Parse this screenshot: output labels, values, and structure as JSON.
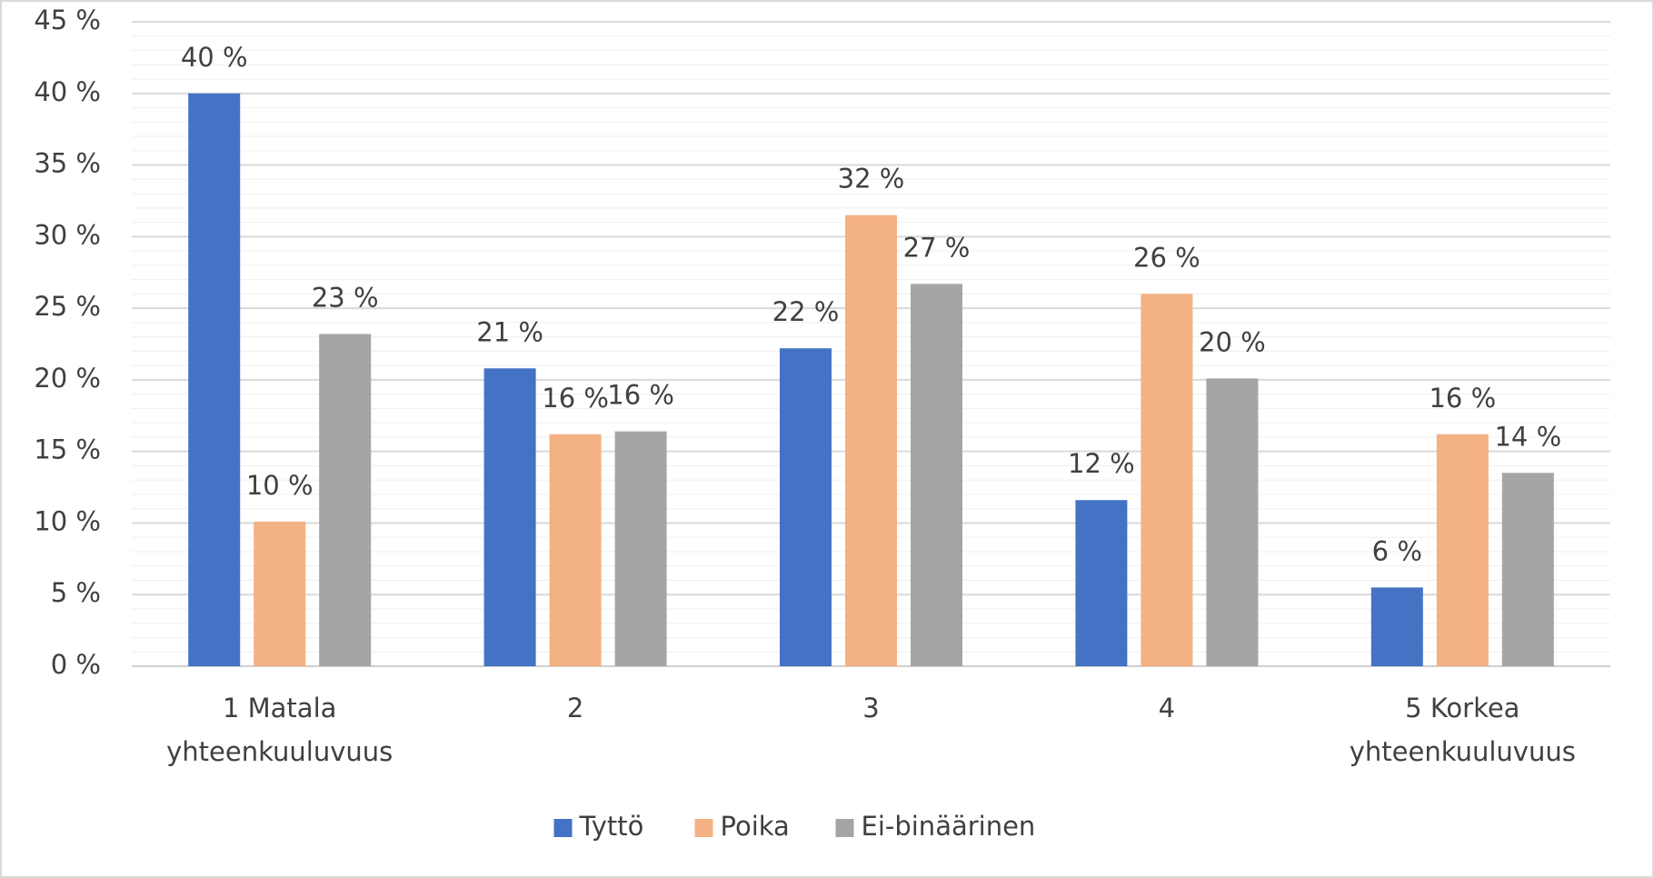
{
  "chart_data": {
    "type": "bar",
    "categories": [
      "1 Matala\nyhteenkuuluvuus",
      "2",
      "3",
      "4",
      "5 Korkea\nyhteenkuuluvuus"
    ],
    "series": [
      {
        "name": "Tyttö",
        "color": "#4472c4",
        "values": [
          40,
          20.8,
          22.2,
          11.6,
          5.5
        ],
        "value_labels": [
          "40 %",
          "21 %",
          "22 %",
          "12 %",
          "6 %"
        ]
      },
      {
        "name": "Poika",
        "color": "#f4b183",
        "values": [
          10.1,
          16.2,
          31.5,
          26,
          16.2
        ],
        "value_labels": [
          "10 %",
          "16 %",
          "32 %",
          "26 %",
          "16 %"
        ]
      },
      {
        "name": "Ei-binäärinen",
        "color": "#a5a5a5",
        "values": [
          23.2,
          16.4,
          26.7,
          20.1,
          13.5
        ],
        "value_labels": [
          "23 %",
          "16 %",
          "27 %",
          "20 %",
          "14 %"
        ]
      }
    ],
    "ylim": [
      0,
      45
    ],
    "yticks": [
      {
        "value": 0,
        "label": "0 %"
      },
      {
        "value": 5,
        "label": "5 %"
      },
      {
        "value": 10,
        "label": "10 %"
      },
      {
        "value": 15,
        "label": "15 %"
      },
      {
        "value": 20,
        "label": "20 %"
      },
      {
        "value": 25,
        "label": "25 %"
      },
      {
        "value": 30,
        "label": "30 %"
      },
      {
        "value": 35,
        "label": "35 %"
      },
      {
        "value": 40,
        "label": "40 %"
      },
      {
        "value": 45,
        "label": "45 %"
      }
    ],
    "yminorticks": [
      1,
      2,
      3,
      4,
      6,
      7,
      8,
      9,
      11,
      12,
      13,
      14,
      16,
      17,
      18,
      19,
      21,
      22,
      23,
      24,
      26,
      27,
      28,
      29,
      31,
      32,
      33,
      34,
      36,
      37,
      38,
      39,
      41,
      42,
      43,
      44
    ],
    "grid": true,
    "legend": "bottom"
  }
}
